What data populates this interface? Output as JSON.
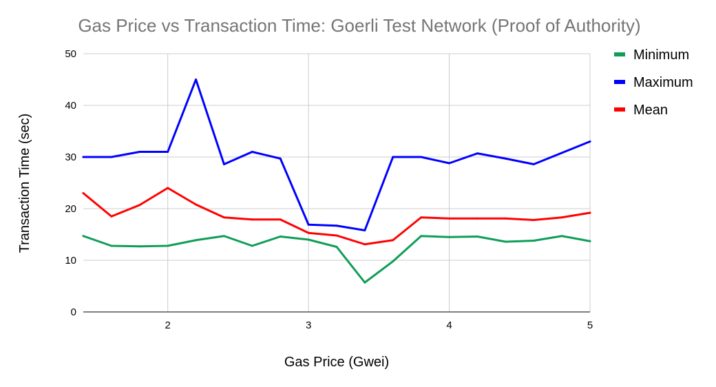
{
  "chart_data": {
    "type": "line",
    "title": "Gas Price vs Transaction Time: Goerli Test Network (Proof of Authority)",
    "xlabel": "Gas Price (Gwei)",
    "ylabel": "Transaction Time (sec)",
    "xlim": [
      1.4,
      5
    ],
    "ylim": [
      0,
      50
    ],
    "x_ticks": [
      2,
      3,
      4,
      5
    ],
    "y_ticks": [
      0,
      10,
      20,
      30,
      40,
      50
    ],
    "grid": true,
    "legend_position": "right",
    "x": [
      1.4,
      1.6,
      1.8,
      2.0,
      2.2,
      2.4,
      2.6,
      2.8,
      3.0,
      3.2,
      3.4,
      3.6,
      3.8,
      4.0,
      4.2,
      4.4,
      4.6,
      4.8,
      5.0
    ],
    "series": [
      {
        "name": "Minimum",
        "color": "#0f9d58",
        "values": [
          14.7,
          12.8,
          12.7,
          12.8,
          13.9,
          14.7,
          12.8,
          14.6,
          14.0,
          12.6,
          5.7,
          9.8,
          14.7,
          14.5,
          14.6,
          13.6,
          13.8,
          14.7,
          13.7
        ]
      },
      {
        "name": "Maximum",
        "color": "#0000ff",
        "values": [
          30.0,
          30.0,
          31.0,
          31.0,
          45.0,
          28.6,
          31.0,
          29.7,
          16.9,
          16.7,
          15.8,
          30.0,
          30.0,
          28.8,
          30.7,
          29.7,
          28.6,
          30.8,
          33.0
        ]
      },
      {
        "name": "Mean",
        "color": "#ff0000",
        "values": [
          23.0,
          18.5,
          20.7,
          24.0,
          20.8,
          18.3,
          17.9,
          17.9,
          15.3,
          14.8,
          13.1,
          13.9,
          18.3,
          18.1,
          18.1,
          18.1,
          17.8,
          18.3,
          19.2
        ]
      }
    ]
  }
}
